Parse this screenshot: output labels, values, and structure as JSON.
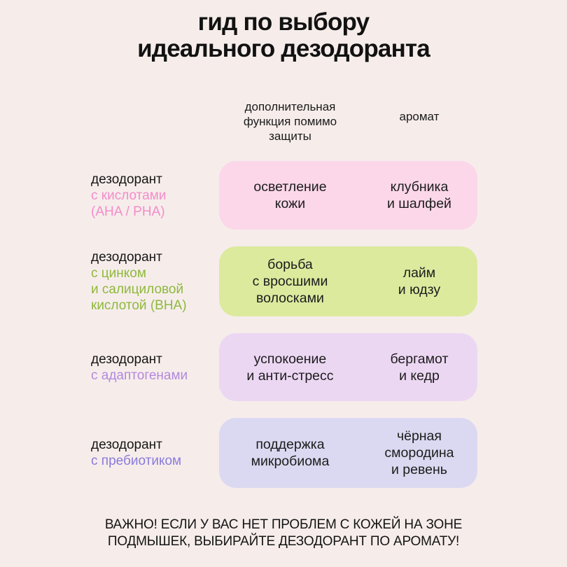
{
  "page": {
    "background": "#f6edeb",
    "title": "гид по выбору\nидеального дезодоранта",
    "footer_note": "ВАЖНО! ЕСЛИ У ВАС НЕТ ПРОБЛЕМ С КОЖЕЙ НА ЗОНЕ\nПОДМЫШЕК, ВЫБИРАЙТЕ ДЕЗОДОРАНТ ПО АРОМАТУ!"
  },
  "columns": {
    "function_header": "дополнительная\nфункция помимо\nзащиты",
    "aroma_header": "аромат"
  },
  "rows": [
    {
      "label_main": "дезодорант",
      "label_accent": "с кислотами\n(AHA / PHA)",
      "accent_color": "#f48cc9",
      "box_color": "#fbd7e9",
      "function": "осветление\nкожи",
      "aroma": "клубника\nи шалфей"
    },
    {
      "label_main": "дезодорант",
      "label_accent": "с цинком\nи салициловой\nкислотой (BHA)",
      "accent_color": "#8fb83c",
      "box_color": "#dcea9e",
      "function": "борьба\nс вросшими\nволосками",
      "aroma": "лайм\nи юдзу"
    },
    {
      "label_main": "дезодорант",
      "label_accent": "с адаптогенами",
      "accent_color": "#b389dc",
      "box_color": "#ecd7f3",
      "function": "успокоение\nи анти-стресс",
      "aroma": "бергамот\nи кедр"
    },
    {
      "label_main": "дезодорант",
      "label_accent": "с пребиотиком",
      "accent_color": "#8a7bdb",
      "box_color": "#dbd9f1",
      "function": "поддержка\nмикробиома",
      "aroma": "чёрная\nсмородина\nи ревень"
    }
  ]
}
